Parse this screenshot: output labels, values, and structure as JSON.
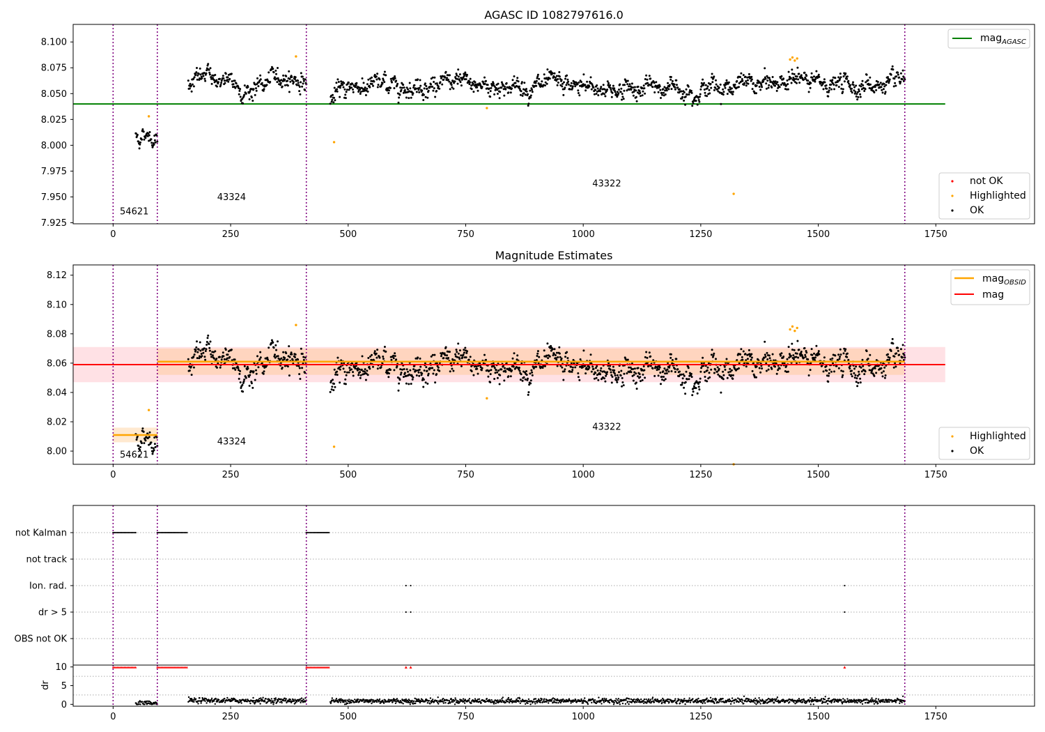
{
  "colors": {
    "ok": "#000000",
    "highlighted": "#ffa500",
    "not_ok": "#ff0000",
    "agasc_line": "#008000",
    "mag_line": "#ff0000",
    "obsid_line": "#ffa500",
    "obs_boundary": "#800080"
  },
  "obs_boundaries": [
    0,
    94,
    411,
    1684
  ],
  "chart_data": [
    {
      "type": "scatter",
      "title": "AGASC ID 1082797616.0",
      "xlim": [
        -85,
        1960
      ],
      "ylim": [
        7.924,
        8.117
      ],
      "x_ticks": [
        "0",
        "250",
        "500",
        "750",
        "1000",
        "1250",
        "1500",
        "1750"
      ],
      "y_ticks": [
        "7.925",
        "7.950",
        "7.975",
        "8.000",
        "8.025",
        "8.050",
        "8.075",
        "8.100"
      ],
      "mag_agasc": 8.04,
      "mag_agasc_span": [
        -85,
        1770
      ],
      "obsid_labels": [
        {
          "label": "54621",
          "x": 45,
          "y": 7.933
        },
        {
          "label": "43324",
          "x": 252,
          "y": 7.947
        },
        {
          "label": "43322",
          "x": 1050,
          "y": 7.96
        }
      ],
      "legend_top": [
        {
          "name": "mag",
          "sub": "AGASC"
        }
      ],
      "legend_bottom": [
        {
          "name": "not OK"
        },
        {
          "name": "Highlighted"
        },
        {
          "name": "OK"
        }
      ],
      "highlighted_points": [
        [
          76,
          8.028
        ],
        [
          389,
          8.086
        ],
        [
          470,
          8.003
        ],
        [
          795,
          8.036
        ],
        [
          1320,
          7.953
        ],
        [
          1440,
          8.083
        ],
        [
          1445,
          8.085
        ],
        [
          1450,
          8.082
        ],
        [
          1455,
          8.084
        ]
      ],
      "segments": [
        {
          "x": [
            48,
            94
          ],
          "level": 8.01,
          "trend": -0.002,
          "noise": 0.005
        },
        {
          "x": [
            160,
            411
          ],
          "level": 8.06,
          "trend": 0.006,
          "noise": 0.007
        },
        {
          "x": [
            462,
            1684
          ],
          "level": 8.057,
          "trend": 0.002,
          "noise": 0.007
        }
      ]
    },
    {
      "type": "scatter",
      "title": "Magnitude Estimates",
      "xlim": [
        -85,
        1960
      ],
      "ylim": [
        7.991,
        8.127
      ],
      "x_ticks": [
        "0",
        "250",
        "500",
        "750",
        "1000",
        "1250",
        "1500",
        "1750"
      ],
      "y_ticks": [
        "8.00",
        "8.02",
        "8.04",
        "8.06",
        "8.08",
        "8.10",
        "8.12"
      ],
      "mag": 8.059,
      "mag_band": [
        8.047,
        8.071
      ],
      "mag_span": [
        -85,
        1770
      ],
      "obsid_mags": [
        {
          "x": [
            0,
            94
          ],
          "mag": 8.011,
          "band": [
            8.006,
            8.016
          ]
        },
        {
          "x": [
            94,
            1684
          ],
          "mag": 8.061,
          "band": [
            8.052,
            8.07
          ]
        }
      ],
      "obsid_labels": [
        {
          "label": "54621",
          "x": 45,
          "y": 7.9955
        },
        {
          "label": "43324",
          "x": 252,
          "y": 8.0045
        },
        {
          "label": "43322",
          "x": 1050,
          "y": 8.0145
        }
      ],
      "legend_top": [
        {
          "name": "mag",
          "sub": "OBSID"
        },
        {
          "name": "mag",
          "sub": ""
        }
      ],
      "legend_bottom": [
        {
          "name": "Highlighted"
        },
        {
          "name": "OK"
        }
      ],
      "highlighted_points": [
        [
          76,
          8.028
        ],
        [
          389,
          8.086
        ],
        [
          470,
          8.003
        ],
        [
          795,
          8.036
        ],
        [
          1320,
          7.991
        ],
        [
          1440,
          8.083
        ],
        [
          1445,
          8.085
        ],
        [
          1450,
          8.082
        ],
        [
          1455,
          8.084
        ]
      ]
    },
    {
      "type": "scatter",
      "title": "",
      "xlim": [
        -85,
        1960
      ],
      "flag_labels": [
        "not Kalman",
        "not track",
        "Ion. rad.",
        "dr > 5",
        "OBS not OK"
      ],
      "flags": [
        {
          "label": "not Kalman",
          "ranges": [
            [
              0,
              48
            ],
            [
              94,
              157
            ],
            [
              411,
              460
            ]
          ],
          "points": []
        },
        {
          "label": "not track",
          "ranges": [],
          "points": []
        },
        {
          "label": "Ion. rad.",
          "ranges": [],
          "points": [
            623,
            633,
            1556
          ]
        },
        {
          "label": "dr > 5",
          "ranges": [],
          "points": [
            623,
            633,
            1556
          ]
        },
        {
          "label": "OBS not OK",
          "ranges": [],
          "points": []
        }
      ]
    },
    {
      "type": "scatter",
      "title": "",
      "ylabel": "dr",
      "xlim": [
        -85,
        1960
      ],
      "ylim": [
        -0.5,
        10.5
      ],
      "x_ticks": [
        "0",
        "250",
        "500",
        "750",
        "1000",
        "1250",
        "1500",
        "1750"
      ],
      "y_ticks": [
        "0",
        "5",
        "10"
      ],
      "dr_clip_ranges": [
        [
          0,
          48
        ],
        [
          94,
          157
        ],
        [
          411,
          460
        ]
      ],
      "dr_clip_points": [
        623,
        633,
        1556
      ],
      "dr_segments": [
        {
          "x": [
            48,
            94
          ],
          "level": 0.2
        },
        {
          "x": [
            160,
            411
          ],
          "level": 1.0
        },
        {
          "x": [
            462,
            1684
          ],
          "level": 0.9
        }
      ]
    }
  ]
}
